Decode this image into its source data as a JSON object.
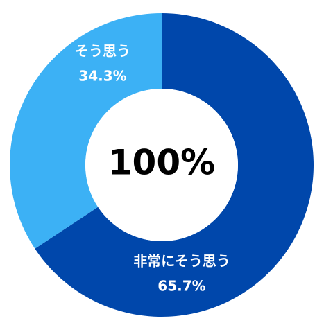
{
  "chart_data": {
    "type": "donut",
    "center_label": "100%",
    "categories": [
      "非常にそう思う",
      "そう思う"
    ],
    "values": [
      65.7,
      34.3
    ],
    "value_labels": [
      "65.7%",
      "34.3%"
    ],
    "colors": [
      "#0047ab",
      "#3cb1f5"
    ]
  }
}
